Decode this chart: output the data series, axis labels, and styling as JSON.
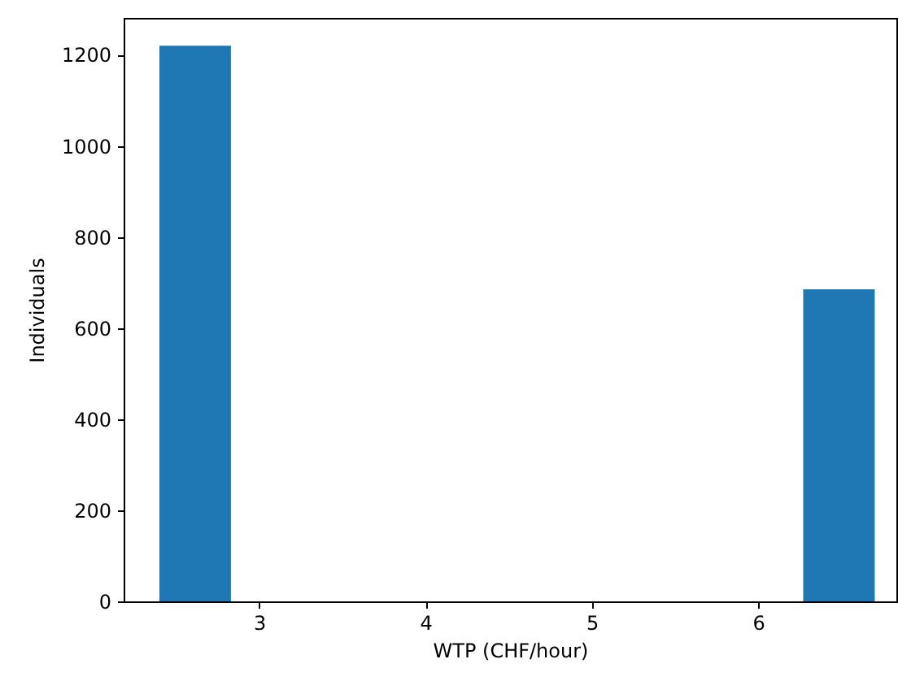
{
  "chart_data": {
    "type": "histogram",
    "xlabel": "WTP (CHF/hour)",
    "ylabel": "Individuals",
    "bins": [
      2.4,
      2.83,
      3.26,
      3.69,
      4.12,
      4.55,
      4.98,
      5.41,
      5.84,
      6.27,
      6.7
    ],
    "values": [
      1220,
      0,
      0,
      0,
      0,
      0,
      0,
      0,
      0,
      685
    ],
    "color": "#1f77b4",
    "xlim": [
      2.185,
      6.83
    ],
    "xticks": [
      3,
      4,
      5,
      6
    ],
    "ylim": [
      0,
      1281
    ],
    "yticks": [
      0,
      200,
      400,
      600,
      800,
      1000,
      1200
    ],
    "grid": false
  }
}
